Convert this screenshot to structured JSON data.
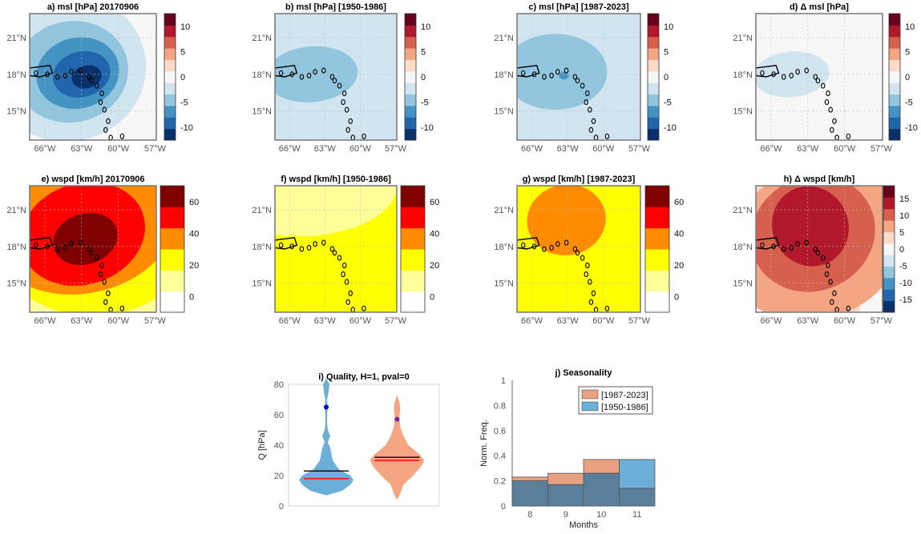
{
  "colors": {
    "msl": [
      "#08306b",
      "#2166ac",
      "#4393c3",
      "#92c5de",
      "#d1e5f0",
      "#f7f7f7",
      "#fddbc7",
      "#f4a582",
      "#d6604d",
      "#b2182b",
      "#67001f"
    ],
    "wspd": [
      "#ffffff",
      "#ffff99",
      "#ffff00",
      "#ff8c00",
      "#ff0000",
      "#800000"
    ],
    "diff15": [
      "#08306b",
      "#2166ac",
      "#4393c3",
      "#92c5de",
      "#d1e5f0",
      "#f7f7f7",
      "#fddbc7",
      "#f4a582",
      "#d6604d",
      "#b2182b",
      "#67001f"
    ],
    "violin_blue": "#6baed6",
    "violin_orange": "#f4a582",
    "mean_line": "#000000",
    "median_line": "#ff0000",
    "bar_orange": "#e8a080",
    "bar_blue": "#6baed6",
    "bar_overlap": "#5a7f9a"
  },
  "lon_ticks": [
    "66°W",
    "63°W",
    "60°W",
    "57°W"
  ],
  "lat_ticks": [
    "21°N",
    "18°N",
    "15°N"
  ],
  "panels": [
    {
      "title": "a) msl [hPa] 20170906",
      "cb": "msl",
      "cb_ticks": [
        "10",
        "5",
        "0",
        "-5",
        "-10"
      ]
    },
    {
      "title": "b) msl [hPa] [1950-1986]",
      "cb": "msl",
      "cb_ticks": [
        "10",
        "5",
        "0",
        "-5",
        "-10"
      ]
    },
    {
      "title": "c) msl [hPa] [1987-2023]",
      "cb": "msl",
      "cb_ticks": [
        "10",
        "5",
        "0",
        "-5",
        "-10"
      ]
    },
    {
      "title": "d) Δ msl [hPa]",
      "cb": "msl",
      "cb_ticks": [
        "10",
        "5",
        "0",
        "-5",
        "-10"
      ]
    },
    {
      "title": "e) wspd [km/h] 20170906",
      "cb": "wspd",
      "cb_ticks": [
        "60",
        "40",
        "20",
        "0"
      ]
    },
    {
      "title": "f) wspd [km/h] [1950-1986]",
      "cb": "wspd",
      "cb_ticks": [
        "60",
        "40",
        "20",
        "0"
      ]
    },
    {
      "title": "g) wspd [km/h] [1987-2023]",
      "cb": "wspd",
      "cb_ticks": [
        "60",
        "40",
        "20",
        "0"
      ]
    },
    {
      "title": "h) Δ wspd [km/h]",
      "cb": "diff15",
      "cb_ticks": [
        "15",
        "10",
        "5",
        "0",
        "-5",
        "-10",
        "-15"
      ]
    }
  ],
  "chart_data": [
    {
      "type": "violin",
      "title": "i) Quality, H=1, pval=0",
      "ylabel": "Q [hPa]",
      "ylim": [
        0,
        80
      ],
      "yticks": [
        "0",
        "20",
        "40",
        "60",
        "80"
      ],
      "series": [
        {
          "name": "[1950-1986]",
          "mean": 23,
          "median": 18,
          "analog_point": 65,
          "min": 7,
          "max": 84
        },
        {
          "name": "[1987-2023]",
          "mean": 32,
          "median": 30,
          "analog_point": 57,
          "min": 4,
          "max": 73
        }
      ]
    },
    {
      "type": "bar",
      "title": "j) Seasonality",
      "xlabel": "Months",
      "ylabel": "Norm. Freq.",
      "ylim": [
        0,
        1
      ],
      "yticks": [
        "0",
        "0.2",
        "0.4",
        "0.6",
        "0.8",
        "1"
      ],
      "categories": [
        "8",
        "9",
        "10",
        "11"
      ],
      "series": [
        {
          "name": "[1987-2023]",
          "values": [
            0.23,
            0.26,
            0.37,
            0.14
          ]
        },
        {
          "name": "[1950-1986]",
          "values": [
            0.2,
            0.17,
            0.26,
            0.37
          ]
        }
      ],
      "legend": "top-right"
    }
  ]
}
